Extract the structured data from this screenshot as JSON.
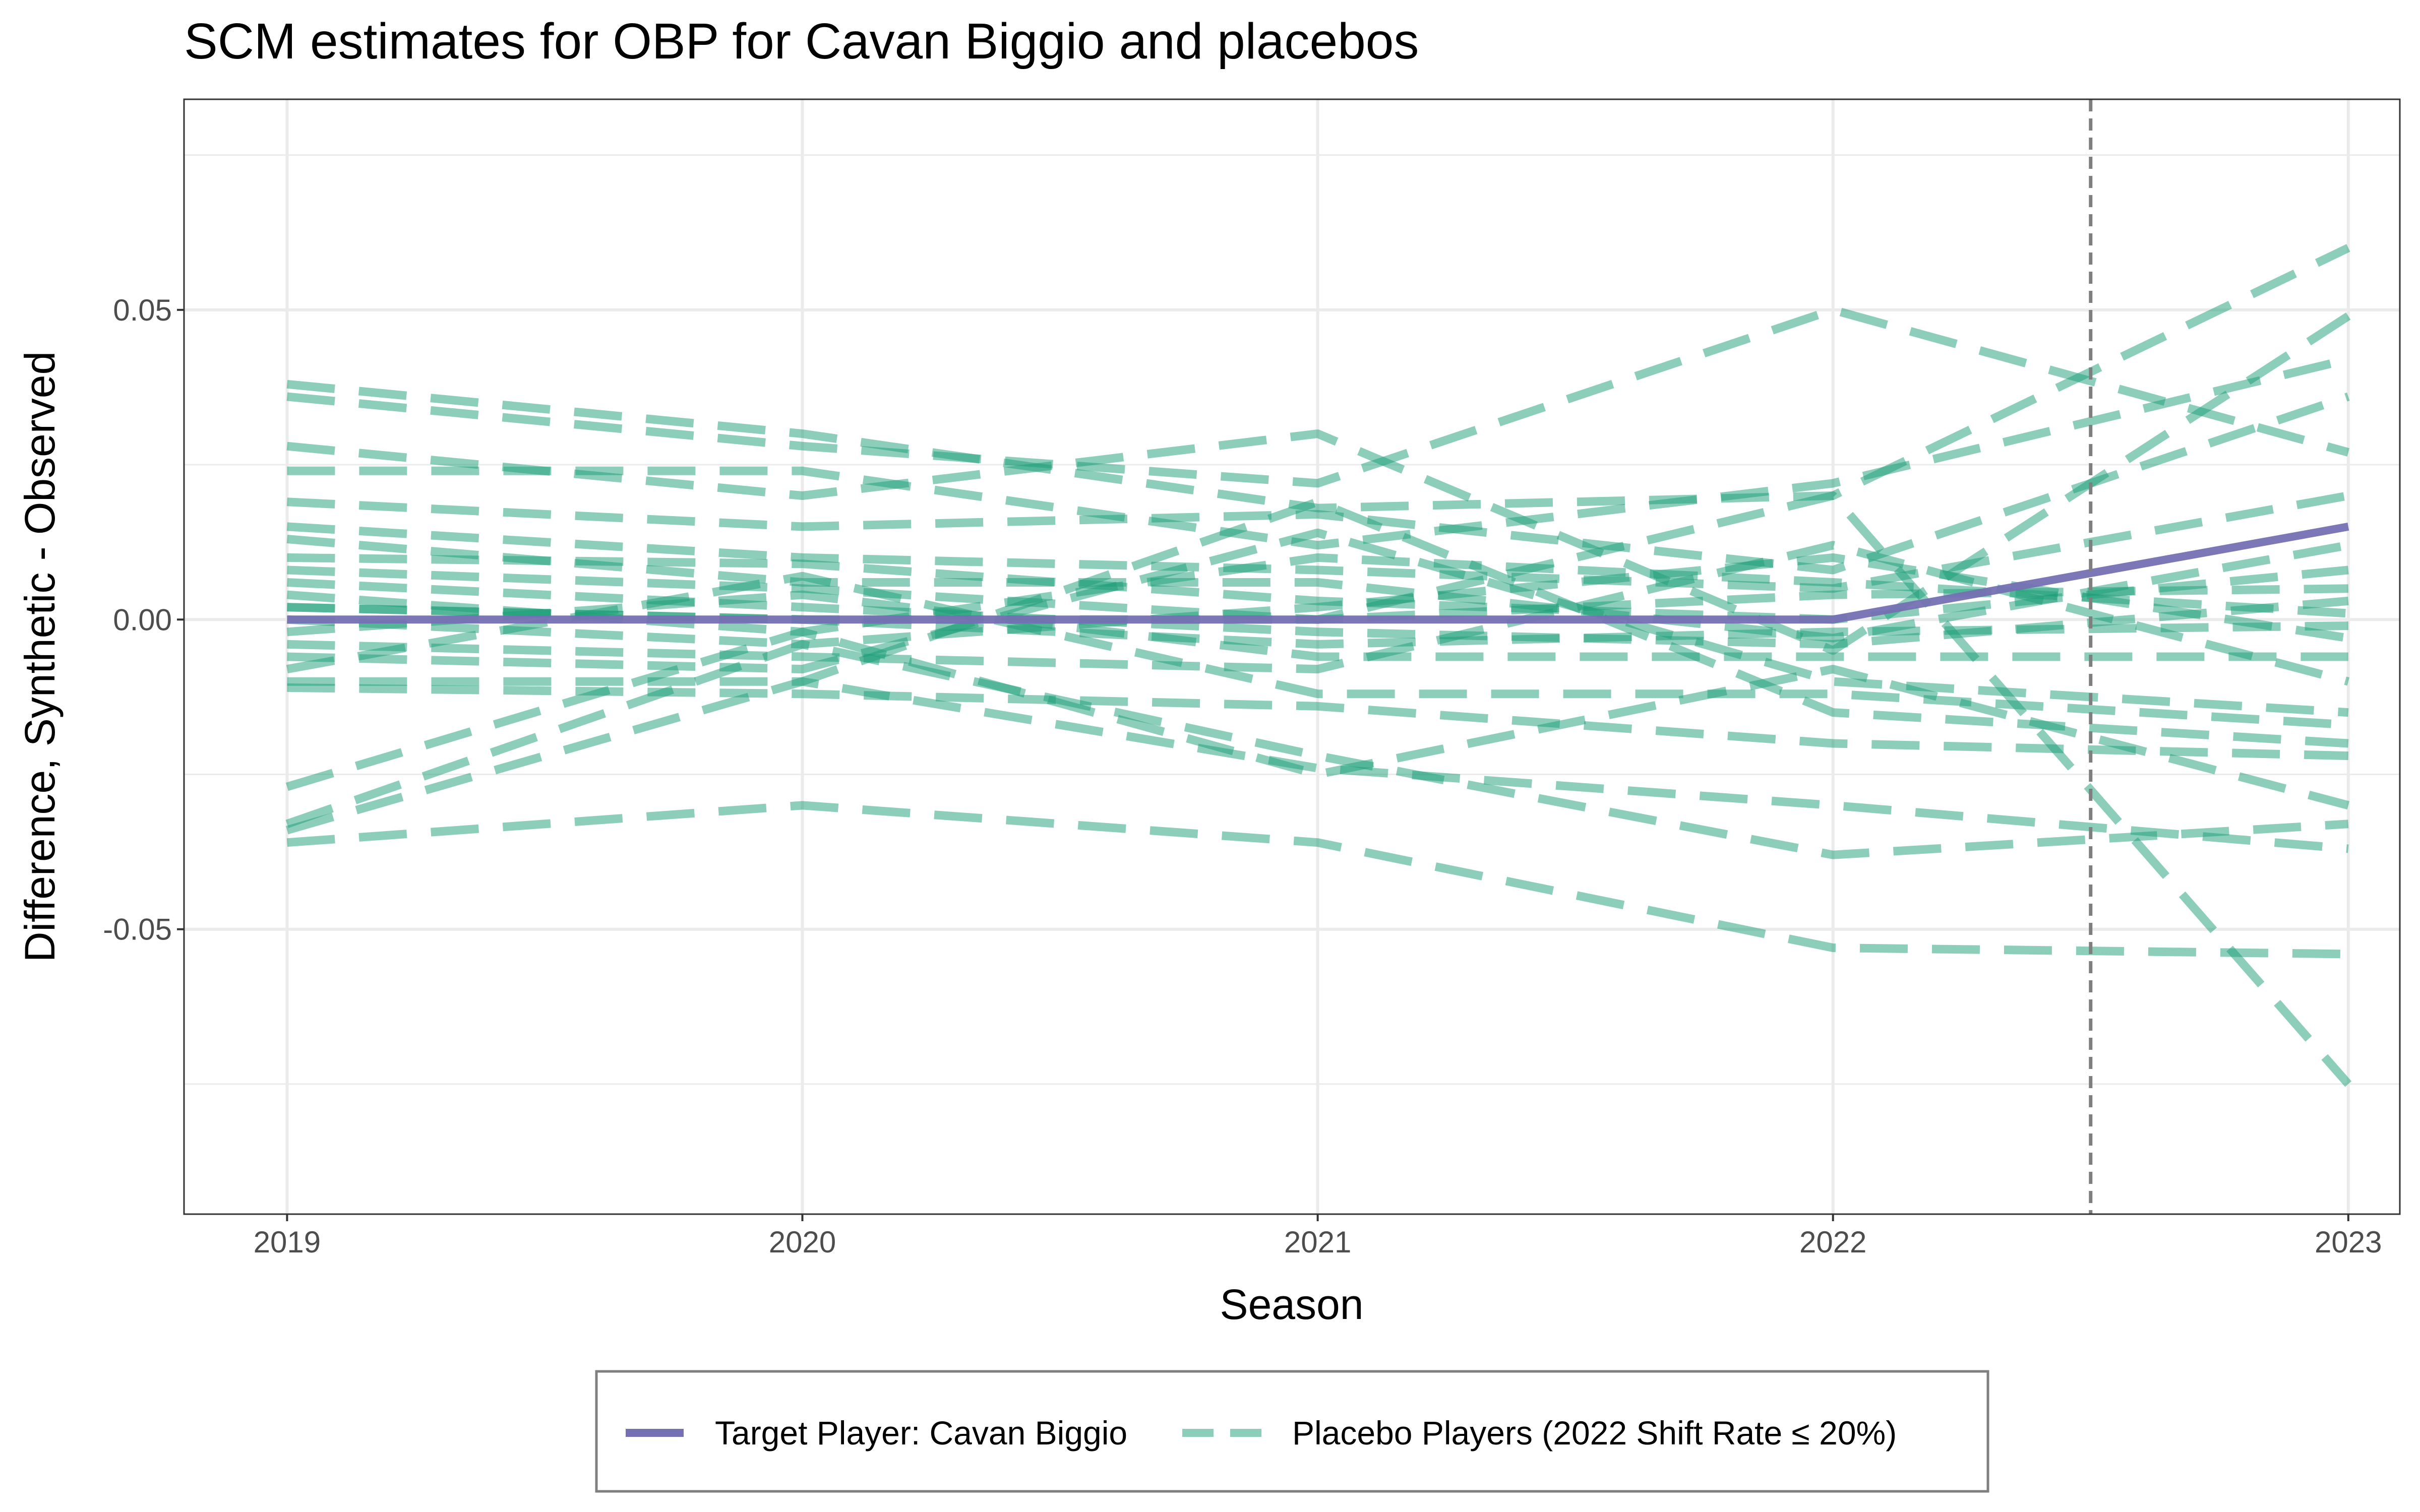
{
  "chart_data": {
    "type": "line",
    "title": "SCM estimates for OBP for Cavan Biggio and placebos",
    "xlabel": "Season",
    "ylabel": "Difference, Synthetic - Observed",
    "x": [
      2019,
      2020,
      2021,
      2022,
      2023
    ],
    "x_tick_labels": [
      "2019",
      "2020",
      "2021",
      "2022",
      "2023"
    ],
    "y_ticks": [
      -0.05,
      0.0,
      0.05
    ],
    "y_tick_labels": [
      "-0.05",
      "0.00",
      "0.05"
    ],
    "xlim": [
      2018.8,
      2023.1
    ],
    "ylim": [
      -0.096,
      0.084
    ],
    "grid": true,
    "treatment_line": {
      "x": 2022.5,
      "style": "dashed"
    },
    "legend_position": "bottom",
    "target_series": {
      "name": "Target Player: Cavan Biggio",
      "values": [
        0.0,
        0.0,
        0.0,
        0.0,
        0.015
      ]
    },
    "placebo_series_name": "Placebo Players (2022 Shift Rate ≤ 20%)",
    "placebo_series": [
      [
        0.038,
        0.03,
        0.018,
        0.02,
        0.06
      ],
      [
        0.036,
        0.028,
        0.022,
        0.05,
        0.027
      ],
      [
        0.028,
        0.02,
        0.03,
        -0.005,
        0.049
      ],
      [
        0.024,
        0.024,
        0.012,
        0.022,
        0.042
      ],
      [
        0.019,
        0.015,
        0.017,
        0.008,
        0.036
      ],
      [
        0.015,
        0.01,
        0.008,
        0.005,
        0.02
      ],
      [
        0.013,
        0.006,
        0.006,
        -0.003,
        0.012
      ],
      [
        0.01,
        0.009,
        0.003,
        0.0,
        0.008
      ],
      [
        0.008,
        0.005,
        0.0,
        0.004,
        0.005
      ],
      [
        0.006,
        0.002,
        -0.002,
        -0.004,
        0.003
      ],
      [
        0.004,
        -0.002,
        0.01,
        0.006,
        0.001
      ],
      [
        0.002,
        0.0,
        -0.004,
        -0.002,
        -0.001
      ],
      [
        0.0,
        -0.004,
        0.002,
        0.01,
        -0.003
      ],
      [
        -0.002,
        0.004,
        -0.006,
        -0.006,
        -0.006
      ],
      [
        -0.004,
        -0.006,
        -0.008,
        0.012,
        -0.01
      ],
      [
        -0.006,
        -0.008,
        0.014,
        -0.01,
        -0.015
      ],
      [
        -0.008,
        0.007,
        -0.012,
        -0.012,
        -0.017
      ],
      [
        -0.01,
        -0.01,
        0.019,
        -0.015,
        -0.02
      ],
      [
        -0.011,
        -0.012,
        -0.014,
        -0.02,
        -0.022
      ],
      [
        -0.027,
        -0.002,
        -0.025,
        -0.008,
        -0.03
      ],
      [
        -0.033,
        -0.004,
        -0.022,
        -0.038,
        -0.033
      ],
      [
        -0.034,
        -0.01,
        -0.024,
        -0.03,
        -0.037
      ],
      [
        -0.036,
        -0.03,
        -0.036,
        -0.053,
        -0.054
      ],
      [
        0.002,
        0.0,
        0.0,
        0.02,
        -0.075
      ]
    ]
  },
  "colors": {
    "target": "#7570b3",
    "placebo": "#1b9e77",
    "grid": "#ebebeb",
    "panel_border": "#333333",
    "treatment_line": "#7f7f7f"
  }
}
